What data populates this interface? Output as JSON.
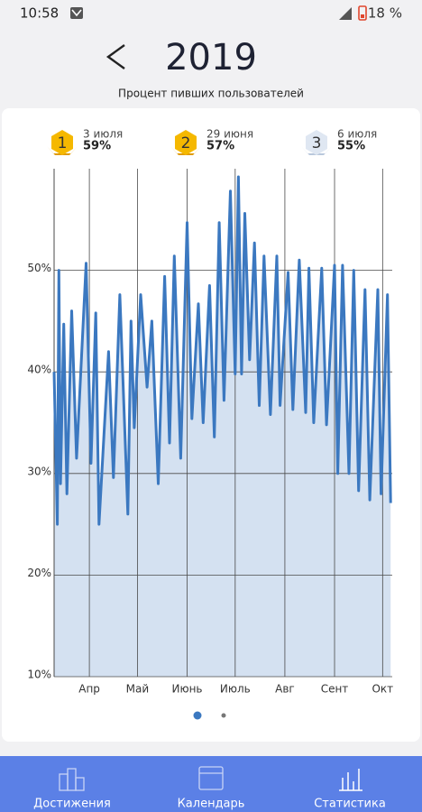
{
  "status_bar": {
    "time": "10:58",
    "battery": "18 %"
  },
  "header": {
    "year": "2019",
    "subtitle": "Процент пивших пользователей"
  },
  "podium": [
    {
      "rank": "1",
      "date": "3 июля",
      "value": "59%"
    },
    {
      "rank": "2",
      "date": "29 июня",
      "value": "57%"
    },
    {
      "rank": "3",
      "date": "6 июля",
      "value": "55%"
    }
  ],
  "chart_data": {
    "type": "line",
    "x": [
      0,
      2,
      3,
      4,
      6,
      8,
      11,
      14,
      20,
      23,
      26,
      28,
      34,
      37,
      41,
      46,
      48,
      50,
      54,
      58,
      61,
      65,
      69,
      72,
      75,
      79,
      83,
      86,
      90,
      93,
      97,
      100,
      103,
      106,
      110,
      113,
      115,
      117,
      119,
      122,
      125,
      128,
      131,
      135,
      139,
      141,
      146,
      149,
      153,
      157,
      159,
      162,
      167,
      170,
      175,
      177,
      180,
      184,
      187,
      190,
      194,
      197,
      202,
      204,
      208,
      210
    ],
    "values": [
      40,
      25,
      50,
      29,
      44.7,
      28,
      46,
      31.5,
      50.7,
      31,
      45.8,
      25,
      42,
      29.6,
      47.6,
      26,
      45,
      34.5,
      47.6,
      38.5,
      45,
      29,
      49.4,
      33,
      51.4,
      31.5,
      54.7,
      35.4,
      46.7,
      35,
      48.5,
      33.6,
      54.7,
      37.2,
      57.8,
      39.8,
      59.2,
      39.8,
      55.6,
      41.2,
      52.7,
      36.7,
      51.4,
      35.8,
      51.4,
      36.7,
      49.8,
      36.3,
      51,
      36,
      50.2,
      35,
      50.2,
      34.8,
      50.5,
      30,
      50.5,
      30,
      50,
      28.3,
      48.1,
      27.4,
      48.1,
      28,
      47.6,
      27.1
    ],
    "color": "#3b78c0",
    "fill_color": "#d4e1f1",
    "xlim": [
      0,
      211
    ],
    "xticks": [
      {
        "value": 22,
        "label": "Апр"
      },
      {
        "value": 52,
        "label": "Май"
      },
      {
        "value": 83,
        "label": "Июнь"
      },
      {
        "value": 113,
        "label": "Июль"
      },
      {
        "value": 144,
        "label": "Авг"
      },
      {
        "value": 175,
        "label": "Сент"
      },
      {
        "value": 205,
        "label": "Окт"
      }
    ],
    "ylim": [
      10,
      60
    ],
    "yticks": [
      {
        "value": 10,
        "label": "10%"
      },
      {
        "value": 20,
        "label": "20%"
      },
      {
        "value": 30,
        "label": "30%"
      },
      {
        "value": 40,
        "label": "40%"
      },
      {
        "value": 50,
        "label": "50%"
      }
    ],
    "grid": true
  },
  "nav": [
    "Достижения",
    "Календарь",
    "Статистика"
  ]
}
